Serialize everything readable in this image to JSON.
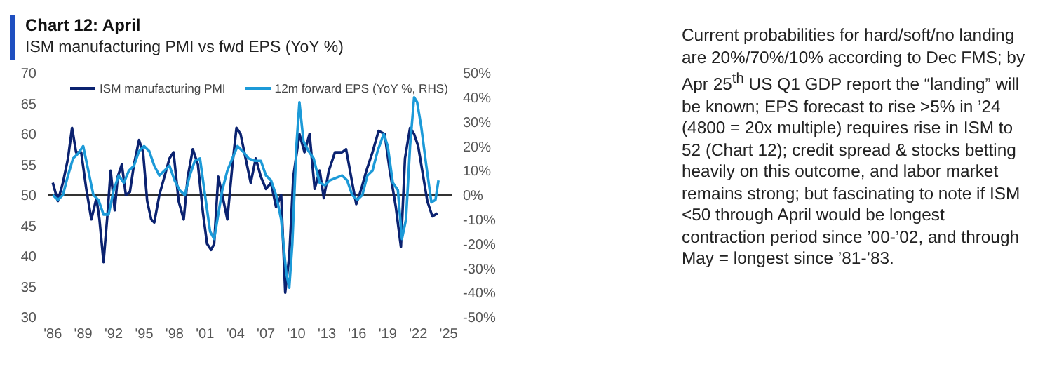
{
  "chart_data": {
    "type": "line",
    "title": "Chart 12: April",
    "subtitle": "ISM manufacturing PMI vs fwd EPS (YoY %)",
    "xlim": [
      1985.5,
      2025.3
    ],
    "xticks": [
      {
        "value": 1986,
        "label": "'86"
      },
      {
        "value": 1989,
        "label": "'89"
      },
      {
        "value": 1992,
        "label": "'92"
      },
      {
        "value": 1995,
        "label": "'95"
      },
      {
        "value": 1998,
        "label": "'98"
      },
      {
        "value": 2001,
        "label": "'01"
      },
      {
        "value": 2004,
        "label": "'04"
      },
      {
        "value": 2007,
        "label": "'07"
      },
      {
        "value": 2010,
        "label": "'10"
      },
      {
        "value": 2013,
        "label": "'13"
      },
      {
        "value": 2016,
        "label": "'16"
      },
      {
        "value": 2019,
        "label": "'19"
      },
      {
        "value": 2022,
        "label": "'22"
      },
      {
        "value": 2025,
        "label": "'25"
      }
    ],
    "ylim": [
      30,
      70
    ],
    "yticks": [
      30,
      35,
      40,
      45,
      50,
      55,
      60,
      65,
      70
    ],
    "y2lim": [
      -50,
      50
    ],
    "y2ticks": [
      {
        "value": -50,
        "label": "-50%"
      },
      {
        "value": -40,
        "label": "-40%"
      },
      {
        "value": -30,
        "label": "-30%"
      },
      {
        "value": -20,
        "label": "-20%"
      },
      {
        "value": -10,
        "label": "-10%"
      },
      {
        "value": 0,
        "label": "0%"
      },
      {
        "value": 10,
        "label": "10%"
      },
      {
        "value": 20,
        "label": "20%"
      },
      {
        "value": 30,
        "label": "30%"
      },
      {
        "value": 40,
        "label": "40%"
      },
      {
        "value": 50,
        "label": "50%"
      }
    ],
    "legend": "top",
    "marker": "none",
    "line_style": "solid",
    "ref_lines": [
      {
        "axis": "y",
        "value": 50,
        "color": "#333333"
      }
    ],
    "series": [
      {
        "name": "ISM manufacturing PMI",
        "color": "#0b2270",
        "x": [
          1986.0,
          1986.5,
          1987.0,
          1987.5,
          1987.9,
          1988.3,
          1988.8,
          1989.3,
          1989.8,
          1990.3,
          1990.6,
          1991.0,
          1991.4,
          1991.7,
          1992.1,
          1992.4,
          1992.8,
          1993.2,
          1993.6,
          1994.0,
          1994.5,
          1994.9,
          1995.3,
          1995.7,
          1996.0,
          1996.5,
          1997.0,
          1997.5,
          1997.9,
          1998.4,
          1998.9,
          1999.3,
          1999.8,
          2000.3,
          2000.8,
          2001.2,
          2001.6,
          2001.9,
          2002.3,
          2002.7,
          2003.2,
          2003.7,
          2004.1,
          2004.5,
          2005.0,
          2005.5,
          2006.0,
          2006.5,
          2007.0,
          2007.5,
          2008.0,
          2008.5,
          2008.9,
          2009.3,
          2009.7,
          2010.3,
          2010.8,
          2011.3,
          2011.8,
          2012.3,
          2012.7,
          2013.2,
          2013.8,
          2014.5,
          2014.9,
          2015.5,
          2015.9,
          2016.4,
          2016.9,
          2017.5,
          2018.1,
          2018.7,
          2019.2,
          2019.8,
          2020.3,
          2020.7,
          2021.2,
          2021.6,
          2022.0,
          2022.5,
          2022.9,
          2023.4,
          2023.9
        ],
        "values": [
          52,
          49,
          52,
          56,
          61,
          57,
          57,
          51,
          46,
          49.5,
          46,
          39,
          47,
          54,
          47.5,
          53,
          55,
          50,
          50.5,
          55,
          59,
          57,
          49,
          46,
          45.5,
          50,
          53,
          56,
          57,
          49,
          46,
          53,
          57.5,
          55,
          47,
          42,
          41,
          42,
          53,
          50,
          46,
          55,
          61,
          60,
          56,
          52,
          56,
          53,
          51,
          52,
          48,
          50,
          34,
          40,
          53,
          60,
          57,
          60,
          51,
          54,
          49.5,
          54,
          57,
          57,
          57.5,
          52,
          48.5,
          51,
          54,
          57,
          60.5,
          60,
          54,
          48,
          41.5,
          56,
          61,
          60,
          58,
          53,
          49,
          46.5,
          47
        ]
      },
      {
        "name": "12m forward EPS (YoY %, RHS)",
        "color": "#1c9ad8",
        "axis": "y2",
        "x": [
          1986.0,
          1986.5,
          1987.0,
          1987.5,
          1988.0,
          1988.5,
          1989.0,
          1989.5,
          1990.0,
          1990.5,
          1991.0,
          1991.5,
          1992.0,
          1992.5,
          1993.0,
          1993.5,
          1994.0,
          1994.5,
          1995.0,
          1995.5,
          1996.0,
          1996.5,
          1997.0,
          1997.5,
          1998.0,
          1998.5,
          1999.0,
          1999.5,
          2000.0,
          2000.5,
          2001.0,
          2001.5,
          2001.9,
          2002.3,
          2002.7,
          2003.2,
          2003.7,
          2004.2,
          2004.7,
          2005.3,
          2005.9,
          2006.5,
          2007.0,
          2007.5,
          2008.0,
          2008.5,
          2009.0,
          2009.3,
          2009.6,
          2010.0,
          2010.3,
          2010.7,
          2011.2,
          2011.7,
          2012.3,
          2012.8,
          2013.3,
          2013.9,
          2014.5,
          2015.0,
          2015.5,
          2016.0,
          2016.5,
          2017.0,
          2017.5,
          2018.0,
          2018.6,
          2019.0,
          2019.5,
          2020.0,
          2020.4,
          2020.8,
          2021.2,
          2021.6,
          2021.9,
          2022.3,
          2022.8,
          2023.3,
          2023.7,
          2024.0
        ],
        "values": [
          0,
          -2,
          0,
          8,
          15,
          17,
          20,
          10,
          0,
          -2,
          -8,
          -8,
          2,
          8,
          5,
          10,
          12,
          18,
          20,
          18,
          12,
          8,
          10,
          12,
          6,
          2,
          0,
          8,
          14,
          15,
          0,
          -15,
          -18,
          -8,
          2,
          10,
          15,
          20,
          18,
          15,
          14,
          14,
          8,
          6,
          0,
          -10,
          -32,
          -38,
          -20,
          20,
          38,
          22,
          18,
          15,
          5,
          4,
          6,
          7,
          8,
          6,
          0,
          -2,
          0,
          8,
          10,
          18,
          25,
          20,
          5,
          2,
          -18,
          -10,
          20,
          40,
          38,
          28,
          12,
          -3,
          -2,
          6
        ]
      }
    ],
    "annotations": [
      "Current probabilities for hard/soft/no landing are 20%/70%/10% according to Dec FMS; by Apr 25$^{th}$ US Q1 GDP report the “landing” will be known; EPS forecast to rise >5% in ’24 (4800 = 20x multiple) requires rise in ISM to 52 (Chart 12); credit spread & stocks betting heavily on this outcome, and labor market remains strong; but fascinating to note if ISM <50 through April would be longest contraction period since ’00-’02, and through May = longest since ’81-’83."
    ]
  }
}
